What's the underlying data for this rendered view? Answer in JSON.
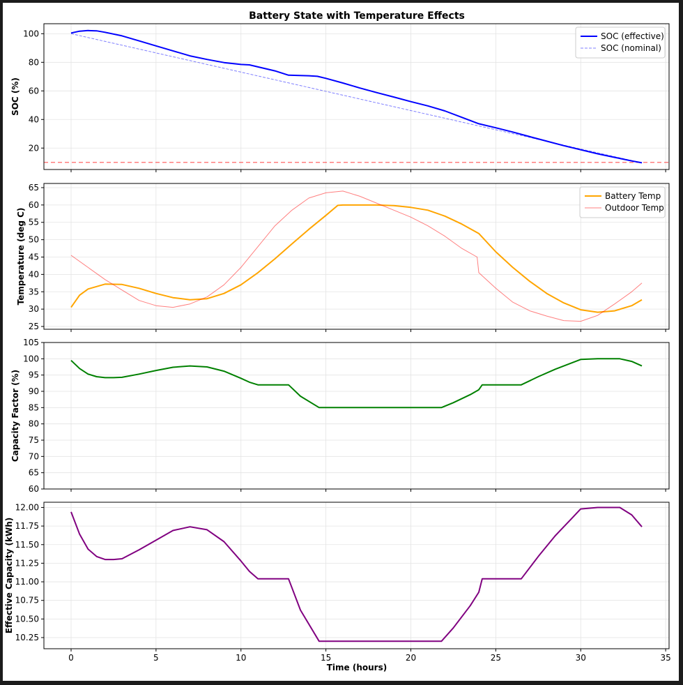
{
  "chart_data": {
    "type": "line",
    "title": "Battery State with Temperature Effects",
    "xlabel": "Time (hours)",
    "xlim": [
      -1.6,
      35.2
    ],
    "xticks": [
      0,
      5,
      10,
      15,
      20,
      25,
      30,
      35
    ],
    "grid": true,
    "panels": [
      {
        "ylabel": "SOC (%)",
        "ylim": [
          5,
          107
        ],
        "yticks": [
          20,
          40,
          60,
          80,
          100
        ],
        "legend": "upper right",
        "hlines": [
          {
            "y": 10,
            "color": "#ff0000",
            "style": "dashed",
            "alpha": 0.5
          }
        ],
        "series": [
          {
            "name": "SOC (effective)",
            "color": "#0000ff",
            "width": 2,
            "style": "solid",
            "x": [
              0,
              0.5,
              1,
              1.5,
              2,
              3,
              4,
              5,
              6,
              7,
              8,
              9,
              10,
              10.5,
              11,
              12,
              12.8,
              14,
              14.5,
              15,
              16,
              17,
              18,
              19,
              20,
              21,
              22,
              23,
              24,
              25,
              26,
              27,
              28,
              29,
              30,
              31,
              32,
              33,
              33.6
            ],
            "y": [
              100.5,
              101.8,
              102.2,
              102.0,
              101.0,
              98.5,
              95.0,
              91.5,
              88.0,
              84.5,
              82.0,
              79.8,
              78.5,
              78.2,
              76.8,
              74.0,
              71.0,
              70.6,
              70.2,
              68.8,
              65.5,
              62.0,
              58.8,
              55.7,
              52.5,
              49.5,
              46.0,
              41.5,
              37.0,
              34.2,
              31.2,
              28.0,
              24.8,
              21.7,
              18.8,
              16.0,
              13.5,
              11.0,
              9.7
            ]
          },
          {
            "name": "SOC (nominal)",
            "color": "#0000ff",
            "width": 1,
            "style": "dashed",
            "alpha": 0.5,
            "x": [
              0,
              33.6
            ],
            "y": [
              100,
              9.7
            ]
          }
        ]
      },
      {
        "ylabel": "Temperature (deg C)",
        "ylim": [
          24.2,
          66.2
        ],
        "yticks": [
          25,
          30,
          35,
          40,
          45,
          50,
          55,
          60,
          65
        ],
        "legend": "upper right",
        "series": [
          {
            "name": "Battery Temp",
            "color": "#ffa500",
            "width": 2,
            "style": "solid",
            "x": [
              0,
              0.5,
              1,
              2,
              3,
              4,
              5,
              6,
              7,
              8,
              9,
              10,
              11,
              12,
              13,
              14,
              15,
              15.7,
              16,
              17,
              18,
              19,
              20,
              21,
              22,
              23,
              24,
              25,
              26,
              27,
              28,
              29,
              30,
              31,
              32,
              33,
              33.6
            ],
            "y": [
              30.5,
              34.0,
              35.8,
              37.2,
              37.1,
              36.0,
              34.5,
              33.3,
              32.7,
              33.0,
              34.5,
              37.0,
              40.5,
              44.5,
              48.8,
              53.0,
              57.0,
              59.9,
              60.0,
              60.0,
              60.0,
              59.8,
              59.3,
              58.5,
              56.8,
              54.5,
              51.8,
              46.5,
              42.0,
              38.0,
              34.5,
              31.8,
              29.8,
              29.1,
              29.5,
              31.0,
              32.7
            ]
          },
          {
            "name": "Outdoor Temp",
            "color": "#ff0000",
            "width": 1,
            "style": "solid",
            "alpha": 0.5,
            "x": [
              0,
              1,
              2,
              3,
              4,
              5,
              6,
              7,
              8,
              9,
              10,
              11,
              12,
              13,
              14,
              15,
              16,
              17,
              18,
              19,
              20,
              21,
              22,
              23,
              23.9,
              24.0,
              25,
              26,
              27,
              28,
              29,
              30,
              31,
              32,
              33,
              33.6
            ],
            "y": [
              45.5,
              42.0,
              38.5,
              35.5,
              32.5,
              31.0,
              30.5,
              31.5,
              33.5,
              37.0,
              42.0,
              48.0,
              54.0,
              58.5,
              62.0,
              63.5,
              64.0,
              62.5,
              60.5,
              58.5,
              56.5,
              54.0,
              51.0,
              47.5,
              45.0,
              40.5,
              36.0,
              32.0,
              29.5,
              28.0,
              26.7,
              26.5,
              28.2,
              31.5,
              35.0,
              37.5
            ]
          }
        ]
      },
      {
        "ylabel": "Capacity Factor (%)",
        "ylim": [
          60,
          105
        ],
        "yticks": [
          60,
          65,
          70,
          75,
          80,
          85,
          90,
          95,
          100,
          105
        ],
        "series": [
          {
            "name": "",
            "color": "#008000",
            "width": 2,
            "style": "solid",
            "x": [
              0,
              0.5,
              1,
              1.5,
              2,
              2.5,
              3,
              4,
              5,
              6,
              7,
              8,
              9,
              10,
              10.5,
              11,
              12,
              12.8,
              13.5,
              14.6,
              16,
              18,
              20,
              21.8,
              22.5,
              23.5,
              24.0,
              24.2,
              25,
              26.5,
              27.5,
              28.5,
              29.5,
              30,
              31,
              32,
              32.3,
              33,
              33.6
            ],
            "y": [
              99.5,
              97.0,
              95.3,
              94.5,
              94.2,
              94.2,
              94.3,
              95.3,
              96.4,
              97.4,
              97.8,
              97.5,
              96.2,
              94.0,
              92.8,
              92.0,
              92.0,
              92.0,
              88.5,
              85.0,
              85.0,
              85.0,
              85.0,
              85.0,
              86.5,
              89.0,
              90.5,
              92.0,
              92.0,
              92.0,
              94.5,
              96.8,
              98.8,
              99.8,
              100.0,
              100.0,
              100.0,
              99.2,
              97.8
            ]
          }
        ]
      },
      {
        "ylabel": "Effective Capacity (kWh)",
        "ylim": [
          10.1,
          12.07
        ],
        "yticks": [
          10.25,
          10.5,
          10.75,
          11.0,
          11.25,
          11.5,
          11.75,
          12.0
        ],
        "yticklabels": [
          "10.25",
          "10.50",
          "10.75",
          "11.00",
          "11.25",
          "11.50",
          "11.75",
          "12.00"
        ],
        "series": [
          {
            "name": "",
            "color": "#800080",
            "width": 2,
            "style": "solid",
            "x": [
              0,
              0.5,
              1,
              1.5,
              2,
              2.5,
              3,
              4,
              5,
              6,
              7,
              8,
              9,
              10,
              10.5,
              11,
              12,
              12.8,
              13.5,
              14.6,
              16,
              18,
              20,
              21.8,
              22.5,
              23.5,
              24.0,
              24.2,
              25,
              26.5,
              27.5,
              28.5,
              29.5,
              30,
              31,
              32,
              32.3,
              33,
              33.6
            ],
            "y": [
              11.94,
              11.64,
              11.44,
              11.34,
              11.3,
              11.3,
              11.31,
              11.43,
              11.56,
              11.69,
              11.74,
              11.7,
              11.54,
              11.28,
              11.14,
              11.04,
              11.04,
              11.04,
              10.62,
              10.2,
              10.2,
              10.2,
              10.2,
              10.2,
              10.38,
              10.68,
              10.86,
              11.04,
              11.04,
              11.04,
              11.34,
              11.62,
              11.86,
              11.98,
              12.0,
              12.0,
              12.0,
              11.9,
              11.74
            ]
          }
        ]
      }
    ]
  }
}
